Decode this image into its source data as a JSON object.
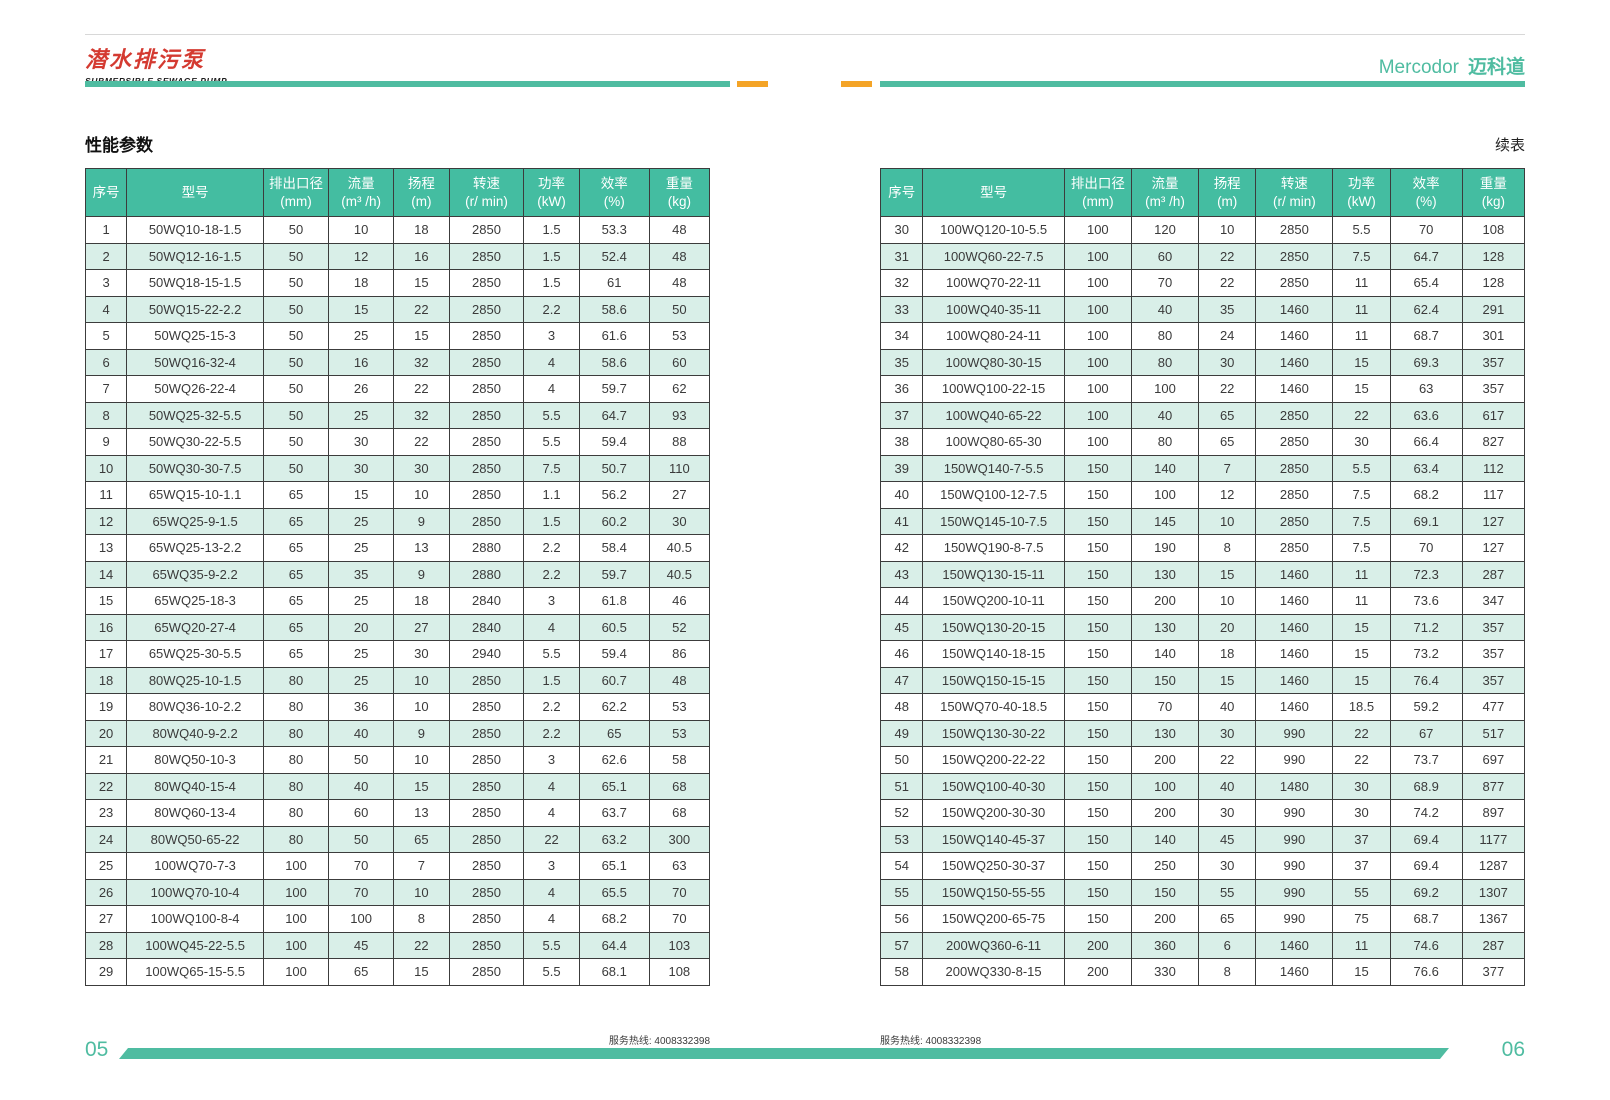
{
  "header": {
    "logo_title_cn": "潜水排污泵",
    "logo_subtitle_en": "SUBMERSIBLE SEWAGE PUMP",
    "brand_en": "Mercodor",
    "brand_cn": "迈科道"
  },
  "section": {
    "title": "性能参数",
    "continued_label": "续表"
  },
  "colors": {
    "teal": "#4fbca1",
    "orange": "#f4a427",
    "logo_red": "#d43a31",
    "header_bg": "#44bda1",
    "row_tint": "#d9efe8"
  },
  "table": {
    "columns": [
      [
        "序号",
        ""
      ],
      [
        "型号",
        ""
      ],
      [
        "排出口径",
        "(mm)"
      ],
      [
        "流量",
        "(m³ /h)"
      ],
      [
        "扬程",
        "(m)"
      ],
      [
        "转速",
        "(r/ min)"
      ],
      [
        "功率",
        "(kW)"
      ],
      [
        "效率",
        "(%)"
      ],
      [
        "重量",
        "(kg)"
      ]
    ],
    "left_rows": [
      [
        "1",
        "50WQ10-18-1.5",
        "50",
        "10",
        "18",
        "2850",
        "1.5",
        "53.3",
        "48"
      ],
      [
        "2",
        "50WQ12-16-1.5",
        "50",
        "12",
        "16",
        "2850",
        "1.5",
        "52.4",
        "48"
      ],
      [
        "3",
        "50WQ18-15-1.5",
        "50",
        "18",
        "15",
        "2850",
        "1.5",
        "61",
        "48"
      ],
      [
        "4",
        "50WQ15-22-2.2",
        "50",
        "15",
        "22",
        "2850",
        "2.2",
        "58.6",
        "50"
      ],
      [
        "5",
        "50WQ25-15-3",
        "50",
        "25",
        "15",
        "2850",
        "3",
        "61.6",
        "53"
      ],
      [
        "6",
        "50WQ16-32-4",
        "50",
        "16",
        "32",
        "2850",
        "4",
        "58.6",
        "60"
      ],
      [
        "7",
        "50WQ26-22-4",
        "50",
        "26",
        "22",
        "2850",
        "4",
        "59.7",
        "62"
      ],
      [
        "8",
        "50WQ25-32-5.5",
        "50",
        "25",
        "32",
        "2850",
        "5.5",
        "64.7",
        "93"
      ],
      [
        "9",
        "50WQ30-22-5.5",
        "50",
        "30",
        "22",
        "2850",
        "5.5",
        "59.4",
        "88"
      ],
      [
        "10",
        "50WQ30-30-7.5",
        "50",
        "30",
        "30",
        "2850",
        "7.5",
        "50.7",
        "110"
      ],
      [
        "11",
        "65WQ15-10-1.1",
        "65",
        "15",
        "10",
        "2850",
        "1.1",
        "56.2",
        "27"
      ],
      [
        "12",
        "65WQ25-9-1.5",
        "65",
        "25",
        "9",
        "2850",
        "1.5",
        "60.2",
        "30"
      ],
      [
        "13",
        "65WQ25-13-2.2",
        "65",
        "25",
        "13",
        "2880",
        "2.2",
        "58.4",
        "40.5"
      ],
      [
        "14",
        "65WQ35-9-2.2",
        "65",
        "35",
        "9",
        "2880",
        "2.2",
        "59.7",
        "40.5"
      ],
      [
        "15",
        "65WQ25-18-3",
        "65",
        "25",
        "18",
        "2840",
        "3",
        "61.8",
        "46"
      ],
      [
        "16",
        "65WQ20-27-4",
        "65",
        "20",
        "27",
        "2840",
        "4",
        "60.5",
        "52"
      ],
      [
        "17",
        "65WQ25-30-5.5",
        "65",
        "25",
        "30",
        "2940",
        "5.5",
        "59.4",
        "86"
      ],
      [
        "18",
        "80WQ25-10-1.5",
        "80",
        "25",
        "10",
        "2850",
        "1.5",
        "60.7",
        "48"
      ],
      [
        "19",
        "80WQ36-10-2.2",
        "80",
        "36",
        "10",
        "2850",
        "2.2",
        "62.2",
        "53"
      ],
      [
        "20",
        "80WQ40-9-2.2",
        "80",
        "40",
        "9",
        "2850",
        "2.2",
        "65",
        "53"
      ],
      [
        "21",
        "80WQ50-10-3",
        "80",
        "50",
        "10",
        "2850",
        "3",
        "62.6",
        "58"
      ],
      [
        "22",
        "80WQ40-15-4",
        "80",
        "40",
        "15",
        "2850",
        "4",
        "65.1",
        "68"
      ],
      [
        "23",
        "80WQ60-13-4",
        "80",
        "60",
        "13",
        "2850",
        "4",
        "63.7",
        "68"
      ],
      [
        "24",
        "80WQ50-65-22",
        "80",
        "50",
        "65",
        "2850",
        "22",
        "63.2",
        "300"
      ],
      [
        "25",
        "100WQ70-7-3",
        "100",
        "70",
        "7",
        "2850",
        "3",
        "65.1",
        "63"
      ],
      [
        "26",
        "100WQ70-10-4",
        "100",
        "70",
        "10",
        "2850",
        "4",
        "65.5",
        "70"
      ],
      [
        "27",
        "100WQ100-8-4",
        "100",
        "100",
        "8",
        "2850",
        "4",
        "68.2",
        "70"
      ],
      [
        "28",
        "100WQ45-22-5.5",
        "100",
        "45",
        "22",
        "2850",
        "5.5",
        "64.4",
        "103"
      ],
      [
        "29",
        "100WQ65-15-5.5",
        "100",
        "65",
        "15",
        "2850",
        "5.5",
        "68.1",
        "108"
      ]
    ],
    "right_rows": [
      [
        "30",
        "100WQ120-10-5.5",
        "100",
        "120",
        "10",
        "2850",
        "5.5",
        "70",
        "108"
      ],
      [
        "31",
        "100WQ60-22-7.5",
        "100",
        "60",
        "22",
        "2850",
        "7.5",
        "64.7",
        "128"
      ],
      [
        "32",
        "100WQ70-22-11",
        "100",
        "70",
        "22",
        "2850",
        "11",
        "65.4",
        "128"
      ],
      [
        "33",
        "100WQ40-35-11",
        "100",
        "40",
        "35",
        "1460",
        "11",
        "62.4",
        "291"
      ],
      [
        "34",
        "100WQ80-24-11",
        "100",
        "80",
        "24",
        "1460",
        "11",
        "68.7",
        "301"
      ],
      [
        "35",
        "100WQ80-30-15",
        "100",
        "80",
        "30",
        "1460",
        "15",
        "69.3",
        "357"
      ],
      [
        "36",
        "100WQ100-22-15",
        "100",
        "100",
        "22",
        "1460",
        "15",
        "63",
        "357"
      ],
      [
        "37",
        "100WQ40-65-22",
        "100",
        "40",
        "65",
        "2850",
        "22",
        "63.6",
        "617"
      ],
      [
        "38",
        "100WQ80-65-30",
        "100",
        "80",
        "65",
        "2850",
        "30",
        "66.4",
        "827"
      ],
      [
        "39",
        "150WQ140-7-5.5",
        "150",
        "140",
        "7",
        "2850",
        "5.5",
        "63.4",
        "112"
      ],
      [
        "40",
        "150WQ100-12-7.5",
        "150",
        "100",
        "12",
        "2850",
        "7.5",
        "68.2",
        "117"
      ],
      [
        "41",
        "150WQ145-10-7.5",
        "150",
        "145",
        "10",
        "2850",
        "7.5",
        "69.1",
        "127"
      ],
      [
        "42",
        "150WQ190-8-7.5",
        "150",
        "190",
        "8",
        "2850",
        "7.5",
        "70",
        "127"
      ],
      [
        "43",
        "150WQ130-15-11",
        "150",
        "130",
        "15",
        "1460",
        "11",
        "72.3",
        "287"
      ],
      [
        "44",
        "150WQ200-10-11",
        "150",
        "200",
        "10",
        "1460",
        "11",
        "73.6",
        "347"
      ],
      [
        "45",
        "150WQ130-20-15",
        "150",
        "130",
        "20",
        "1460",
        "15",
        "71.2",
        "357"
      ],
      [
        "46",
        "150WQ140-18-15",
        "150",
        "140",
        "18",
        "1460",
        "15",
        "73.2",
        "357"
      ],
      [
        "47",
        "150WQ150-15-15",
        "150",
        "150",
        "15",
        "1460",
        "15",
        "76.4",
        "357"
      ],
      [
        "48",
        "150WQ70-40-18.5",
        "150",
        "70",
        "40",
        "1460",
        "18.5",
        "59.2",
        "477"
      ],
      [
        "49",
        "150WQ130-30-22",
        "150",
        "130",
        "30",
        "990",
        "22",
        "67",
        "517"
      ],
      [
        "50",
        "150WQ200-22-22",
        "150",
        "200",
        "22",
        "990",
        "22",
        "73.7",
        "697"
      ],
      [
        "51",
        "150WQ100-40-30",
        "150",
        "100",
        "40",
        "1480",
        "30",
        "68.9",
        "877"
      ],
      [
        "52",
        "150WQ200-30-30",
        "150",
        "200",
        "30",
        "990",
        "30",
        "74.2",
        "897"
      ],
      [
        "53",
        "150WQ140-45-37",
        "150",
        "140",
        "45",
        "990",
        "37",
        "69.4",
        "1177"
      ],
      [
        "54",
        "150WQ250-30-37",
        "150",
        "250",
        "30",
        "990",
        "37",
        "69.4",
        "1287"
      ],
      [
        "55",
        "150WQ150-55-55",
        "150",
        "150",
        "55",
        "990",
        "55",
        "69.2",
        "1307"
      ],
      [
        "56",
        "150WQ200-65-75",
        "150",
        "200",
        "65",
        "990",
        "75",
        "68.7",
        "1367"
      ],
      [
        "57",
        "200WQ360-6-11",
        "200",
        "360",
        "6",
        "1460",
        "11",
        "74.6",
        "287"
      ],
      [
        "58",
        "200WQ330-8-15",
        "200",
        "330",
        "8",
        "1460",
        "15",
        "76.6",
        "377"
      ]
    ]
  },
  "footer": {
    "hotline_left": "服务热线: 4008332398",
    "hotline_right": "服务热线: 4008332398",
    "page_left": "05",
    "page_right": "06"
  }
}
